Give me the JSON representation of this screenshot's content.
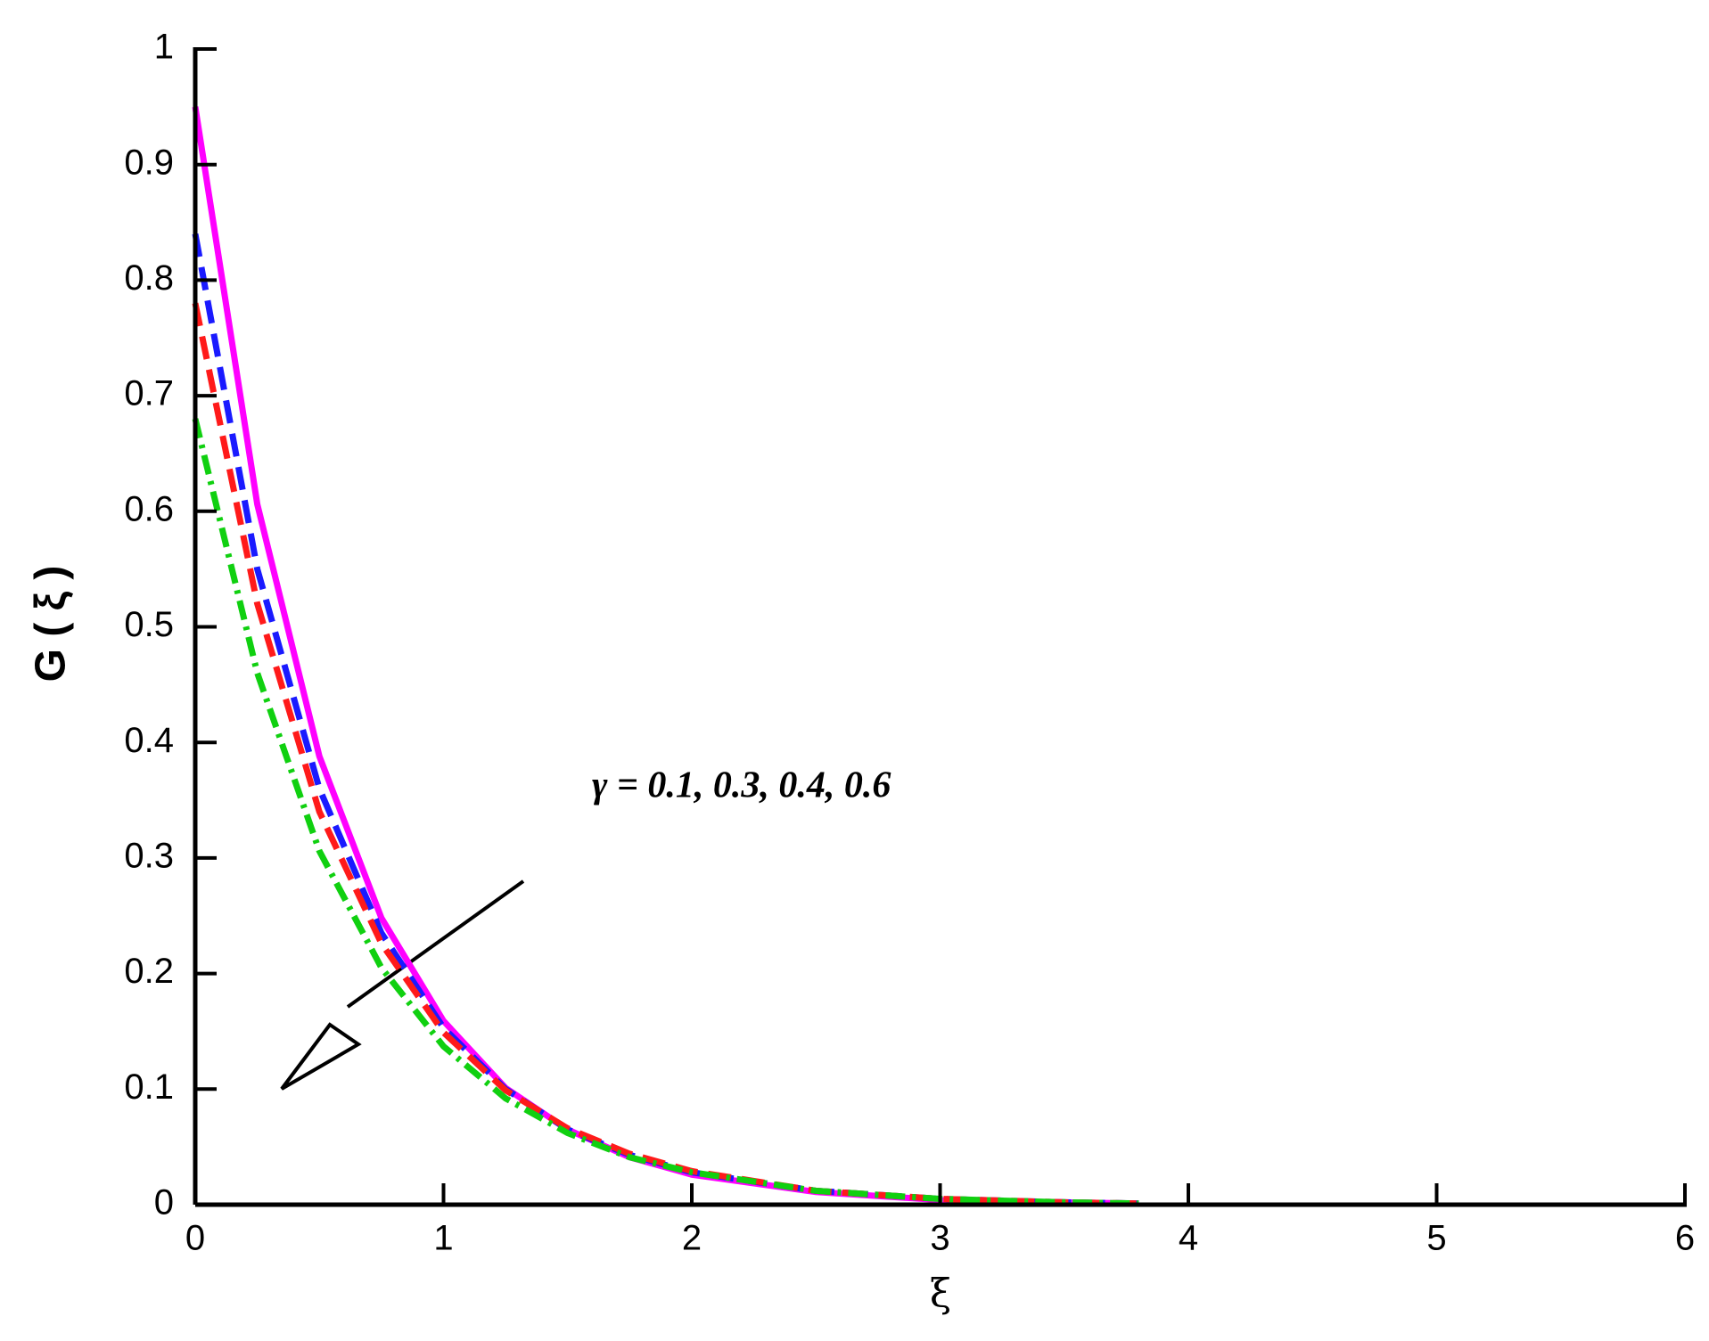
{
  "chart_data": {
    "type": "line",
    "x_label": "ξ",
    "y_label": "G ( ξ )",
    "annotation": "γ = 0.1, 0.3, 0.4, 0.6",
    "x": [
      0,
      0.25,
      0.5,
      0.75,
      1,
      1.25,
      1.5,
      1.75,
      2,
      2.5,
      3,
      3.5,
      3.8
    ],
    "series": [
      {
        "color": "#ff00ff",
        "dash": "solid",
        "values": [
          0.95,
          0.606,
          0.388,
          0.248,
          0.159,
          0.101,
          0.065,
          0.041,
          0.026,
          0.011,
          0.004,
          0.002,
          0.001
        ]
      },
      {
        "color": "#1a1aff",
        "dash": "dashed",
        "values": [
          0.84,
          0.55,
          0.36,
          0.235,
          0.153,
          0.1,
          0.065,
          0.043,
          0.028,
          0.012,
          0.005,
          0.002,
          0.001
        ]
      },
      {
        "color": "#ff1a1a",
        "dash": "dashed",
        "values": [
          0.78,
          0.52,
          0.34,
          0.226,
          0.149,
          0.099,
          0.066,
          0.044,
          0.029,
          0.012,
          0.005,
          0.002,
          0.001
        ]
      },
      {
        "color": "#10d010",
        "dash": "dashdot",
        "values": [
          0.68,
          0.46,
          0.306,
          0.205,
          0.137,
          0.092,
          0.062,
          0.041,
          0.028,
          0.012,
          0.005,
          0.002,
          0.001
        ]
      }
    ],
    "xlim": [
      0,
      6
    ],
    "xticks": [
      0,
      1,
      2,
      3,
      4,
      5,
      6
    ],
    "ylim": [
      0,
      1
    ],
    "yticks": [
      0,
      0.1,
      0.2,
      0.3,
      0.4,
      0.5,
      0.6,
      0.7,
      0.8,
      0.9,
      1
    ]
  }
}
